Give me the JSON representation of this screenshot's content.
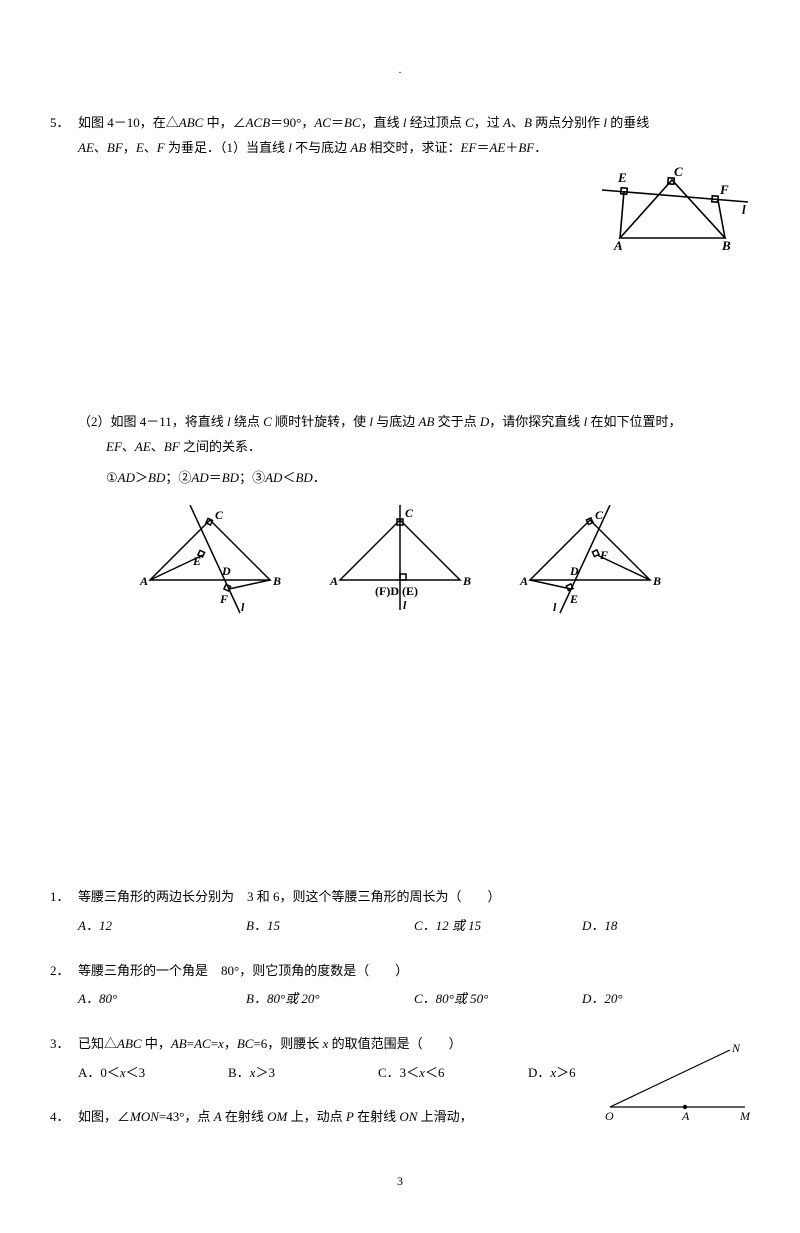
{
  "header": {
    "dot": "."
  },
  "p5": {
    "num": "5．",
    "line1": "如图 4－10，在△<span class=\"italic\">ABC</span> 中，∠<span class=\"italic\">ACB</span>＝90°，<span class=\"italic\">AC</span>＝<span class=\"italic\">BC</span>，直线 <span class=\"italic\">l</span> 经过顶点 <span class=\"italic\">C</span>，过 <span class=\"italic\">A</span>、<span class=\"italic\">B</span> 两点分别作 <span class=\"italic\">l</span> 的垂线",
    "line2": "<span class=\"italic\">AE</span>、<span class=\"italic\">BF</span>，<span class=\"italic\">E</span>、<span class=\"italic\">F</span> 为垂足．（1）当直线 <span class=\"italic\">l</span> 不与底边 <span class=\"italic\">AB</span> 相交时，求证：<span class=\"italic\">EF</span>＝<span class=\"italic\">AE</span>＋<span class=\"italic\">BF</span>．",
    "part2a": "（2）如图 4－11，将直线 <span class=\"italic\">l</span> 绕点 <span class=\"italic\">C</span> 顺时针旋转，使 <span class=\"italic\">l</span> 与底边 <span class=\"italic\">AB</span> 交于点 <span class=\"italic\">D</span>，请你探究直线 <span class=\"italic\">l</span> 在如下位置时，",
    "part2b": "<span class=\"italic\">EF</span>、<span class=\"italic\">AE</span>、<span class=\"italic\">BF</span> 之间的关系．",
    "part2c": "①<span class=\"italic\">AD</span>＞<span class=\"italic\">BD</span>；②<span class=\"italic\">AD</span>＝<span class=\"italic\">BD</span>；③<span class=\"italic\">AD</span>＜<span class=\"italic\">BD</span>．"
  },
  "fig410": {
    "labels": {
      "A": "A",
      "B": "B",
      "C": "C",
      "E": "E",
      "F": "F",
      "l": "l"
    },
    "stroke": "#000",
    "sw": 1.6
  },
  "fig411": {
    "a": {
      "A": "A",
      "B": "B",
      "C": "C",
      "D": "D",
      "E": "E",
      "F": "F",
      "l": "l"
    },
    "b": {
      "A": "A",
      "B": "B",
      "C": "C",
      "FDE": "(F)D (E)",
      "l": "l"
    },
    "c": {
      "A": "A",
      "B": "B",
      "C": "C",
      "D": "D",
      "E": "E",
      "F": "F",
      "l": "l"
    },
    "stroke": "#000",
    "sw": 1.5
  },
  "q1": {
    "num": "1．",
    "text": "等腰三角形的两边长分别为　3 和 6，则这个等腰三角形的周长为（　　）",
    "A": "A．12",
    "B": "B．15",
    "C": "C．12 或 15",
    "D": "D．18"
  },
  "q2": {
    "num": "2．",
    "text": "等腰三角形的一个角是　80°，则它顶角的度数是（　　）",
    "A": "A．80°",
    "B": "B．80°或 20°",
    "C": "C．80°或 50°",
    "D": "D．20°"
  },
  "q3": {
    "num": "3．",
    "text": "已知△<span class=\"italic\">ABC</span> 中，<span class=\"italic\">AB</span>=<span class=\"italic\">AC</span>=<span class=\"italic\">x</span>，<span class=\"italic\">BC</span>=6，则腰长 <span class=\"italic\">x</span> 的取值范围是（　　）",
    "A": "A．0＜<span class=\"italic\">x</span>＜3",
    "B": "B．<span class=\"italic\">x</span>＞3",
    "C": "C．3＜<span class=\"italic\">x</span>＜6",
    "D": "D．<span class=\"italic\">x</span>＞6"
  },
  "q4": {
    "num": "4．",
    "text": "如图，∠<span class=\"italic\">MON</span>=43°，点 <span class=\"italic\">A</span> 在射线 <span class=\"italic\">OM</span> 上，动点 <span class=\"italic\">P</span> 在射线 <span class=\"italic\">ON</span> 上滑动，",
    "fig": {
      "O": "O",
      "A": "A",
      "M": "M",
      "N": "N"
    }
  },
  "pagenum": "3"
}
